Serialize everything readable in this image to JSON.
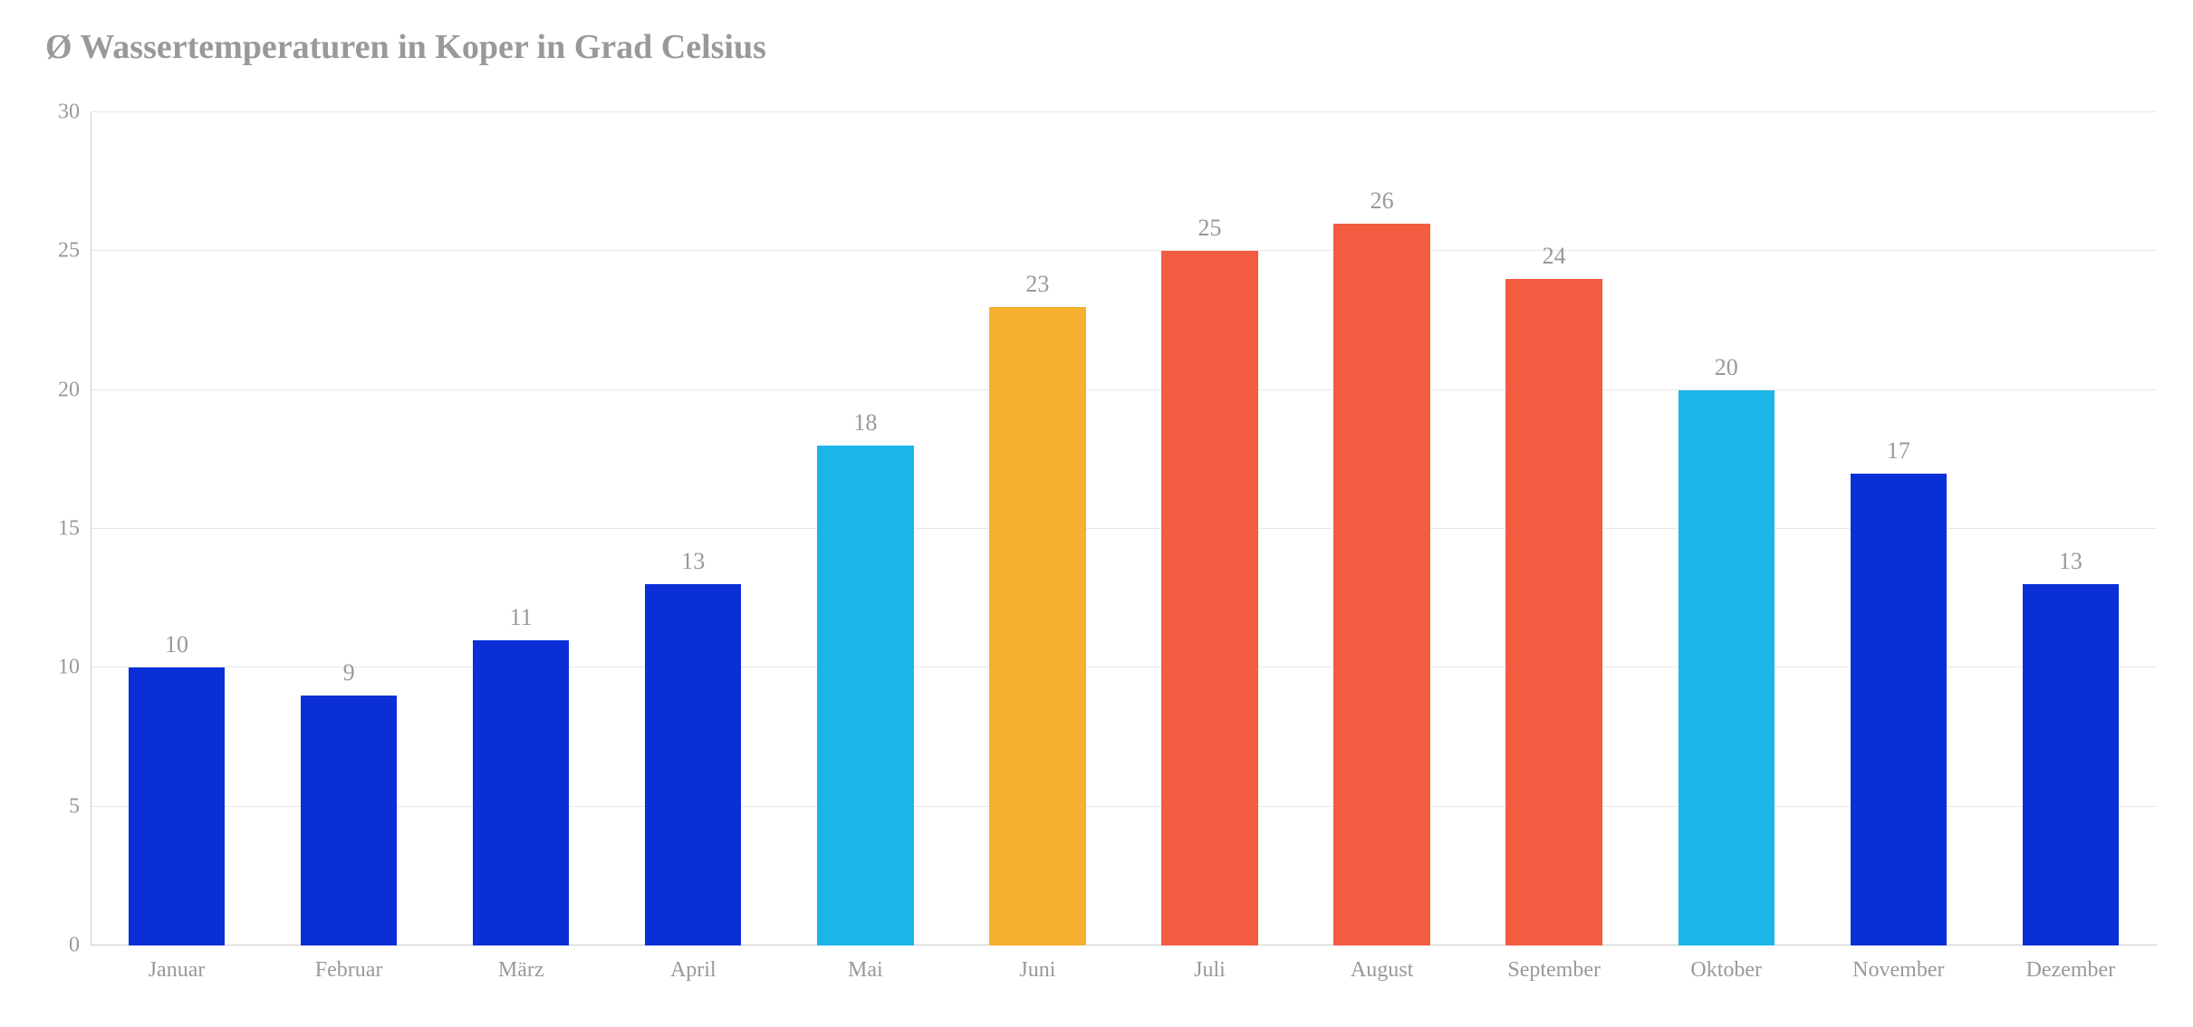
{
  "chart": {
    "type": "bar",
    "title": "Ø Wassertemperaturen in Koper in Grad Celsius",
    "title_fontsize": 38,
    "title_color": "#999999",
    "categories": [
      "Januar",
      "Februar",
      "März",
      "April",
      "Mai",
      "Juni",
      "Juli",
      "August",
      "September",
      "Oktober",
      "November",
      "Dezember"
    ],
    "values": [
      10,
      9,
      11,
      13,
      18,
      23,
      25,
      26,
      24,
      20,
      17,
      13
    ],
    "bar_colors": [
      "#0a2fd6",
      "#0a2fd6",
      "#0a2fd6",
      "#0a2fd6",
      "#1bb5e8",
      "#f6b030",
      "#f45c42",
      "#f45c42",
      "#f45c42",
      "#1bb5e8",
      "#0a2fd6",
      "#0a2fd6"
    ],
    "ylim": [
      0,
      30
    ],
    "ytick_step": 5,
    "yticks": [
      0,
      5,
      10,
      15,
      20,
      25,
      30
    ],
    "background_color": "#ffffff",
    "grid_color": "#e8e8e8",
    "axis_label_color": "#999999",
    "value_label_color": "#999999",
    "axis_fontsize": 24,
    "value_fontsize": 26,
    "bar_width": 0.56,
    "font_family": "Georgia, serif"
  }
}
